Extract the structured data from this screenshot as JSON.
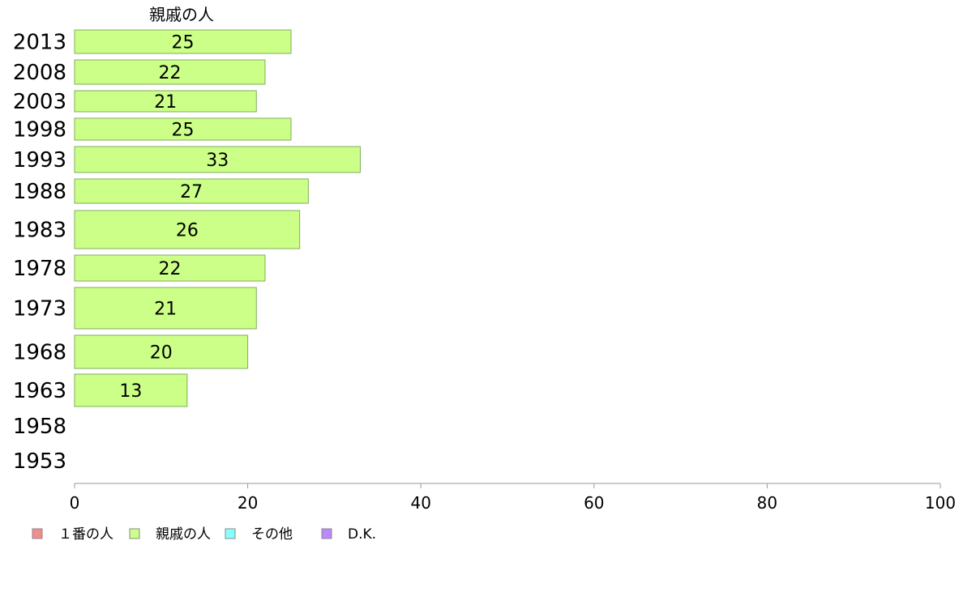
{
  "chart_data": {
    "type": "bar",
    "orientation": "horizontal",
    "title": "親戚の人",
    "categories": [
      "2013",
      "2008",
      "2003",
      "1998",
      "1993",
      "1988",
      "1983",
      "1978",
      "1973",
      "1968",
      "1963",
      "1958",
      "1953"
    ],
    "series": [
      {
        "name": "親戚の人",
        "values": [
          25,
          22,
          21,
          25,
          33,
          27,
          26,
          22,
          21,
          20,
          13,
          null,
          null
        ],
        "labels": [
          "25",
          "22",
          "21",
          "25",
          "33",
          "27",
          "26",
          "22",
          "21",
          "20",
          "13",
          "",
          ""
        ]
      }
    ],
    "xlim": [
      0,
      100
    ],
    "xticks": [
      "0",
      "20",
      "40",
      "60",
      "80",
      "100"
    ],
    "grid": false,
    "legend": {
      "position": "bottom-left",
      "items": [
        {
          "label": "１番の人",
          "color": "#f48c8c"
        },
        {
          "label": "親戚の人",
          "color": "#ccff88"
        },
        {
          "label": "その他",
          "color": "#88ffff"
        },
        {
          "label": "D.K.",
          "color": "#bb88ff"
        }
      ]
    },
    "colors": {
      "bar_fill": "#ccff88",
      "bar_stroke": "#7fae5a",
      "axis": "#999999",
      "text": "#000000"
    }
  }
}
